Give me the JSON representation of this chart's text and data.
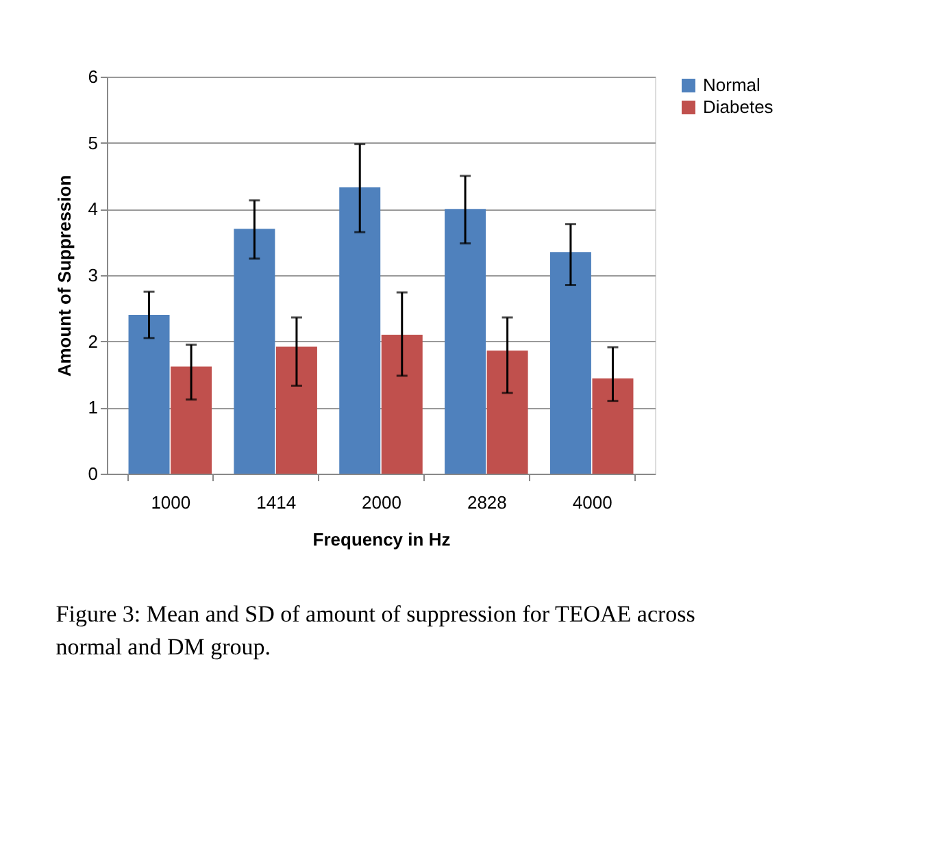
{
  "chart_data": {
    "type": "bar",
    "xlabel": "Frequency in Hz",
    "ylabel": "Amount of Suppression",
    "categories": [
      "1000",
      "1414",
      "2000",
      "2828",
      "4000"
    ],
    "series": [
      {
        "name": "Normal",
        "color": "#4f81bd",
        "values": [
          2.4,
          3.7,
          4.33,
          4.0,
          3.35
        ],
        "errors": [
          [
            2.05,
            2.75
          ],
          [
            3.25,
            4.13
          ],
          [
            3.65,
            4.98
          ],
          [
            3.48,
            4.5
          ],
          [
            2.85,
            3.77
          ]
        ]
      },
      {
        "name": "Diabetes",
        "color": "#c0504d",
        "values": [
          1.62,
          1.92,
          2.1,
          1.86,
          1.44
        ],
        "errors": [
          [
            1.12,
            1.95
          ],
          [
            1.33,
            2.36
          ],
          [
            1.48,
            2.74
          ],
          [
            1.22,
            2.36
          ],
          [
            1.1,
            1.91
          ]
        ]
      }
    ],
    "ylim": [
      0,
      6
    ],
    "yticks": [
      0,
      1,
      2,
      3,
      4,
      5,
      6
    ],
    "grid": "y",
    "legend": "right",
    "annotations": [
      "Figure 3: Mean and SD of amount of suppression for TEOAE across normal and DM group."
    ]
  }
}
